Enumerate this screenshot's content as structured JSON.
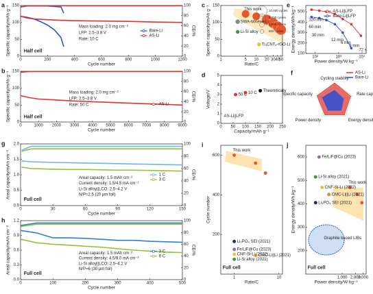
{
  "chart_data": [
    {
      "panel": "a",
      "type": "line",
      "xlabel": "Cycle number",
      "ylabel": "Specific capacity/mAh g⁻¹",
      "y2label": "CE/%",
      "xlim": [
        0,
        1200
      ],
      "xticks": [
        0,
        200,
        400,
        600,
        800,
        1000,
        1200
      ],
      "ylim": [
        0,
        150
      ],
      "yticks": [
        0,
        50,
        100,
        150
      ],
      "y2lim": [
        0,
        100
      ],
      "y2ticks": [
        0,
        20,
        40,
        60,
        80,
        100
      ],
      "series": [
        {
          "name": "Bare-Li",
          "color": "#2a4fd8",
          "x": [
            1,
            50,
            100,
            150,
            200,
            250,
            300,
            320,
            400,
            600,
            800,
            1000,
            1200
          ],
          "values": [
            118,
            115,
            110,
            102,
            92,
            78,
            55,
            28,
            null,
            null,
            null,
            null,
            null
          ]
        },
        {
          "name": "AS-Li",
          "color": "#e0312b",
          "x": [
            1,
            50,
            100,
            150,
            200,
            250,
            300,
            320,
            400,
            600,
            800,
            1000,
            1200
          ],
          "values": [
            118,
            113,
            110,
            109,
            108,
            107,
            106,
            106,
            105,
            104,
            103,
            101,
            100
          ]
        },
        {
          "color": "#2a4fd8",
          "axis": "y2",
          "x": [
            1,
            50,
            100,
            150,
            200,
            250,
            300,
            320,
            400,
            600,
            800,
            1000,
            1200
          ],
          "values": [
            97,
            99,
            99,
            99,
            99,
            98,
            97,
            85,
            null,
            null,
            null,
            null,
            null
          ]
        },
        {
          "color": "#e0312b",
          "axis": "y2",
          "x": [
            1,
            50,
            100,
            150,
            200,
            250,
            300,
            320,
            400,
            600,
            800,
            1000,
            1200
          ],
          "values": [
            97,
            99.5,
            99.5,
            99.5,
            99.5,
            99.5,
            99.5,
            99.5,
            99.5,
            99.5,
            99.5,
            99.5,
            99.5
          ]
        }
      ],
      "annotations": [
        "Mass loading: 2.0 mg cm⁻²",
        "LFP: 2.5–3.8 V",
        "Rate: 10 C",
        "Half cell"
      ]
    },
    {
      "panel": "b",
      "type": "line",
      "xlabel": "Cycle number",
      "ylabel": "Specific capacity/mAh g⁻¹",
      "y2label": "CE/%",
      "xlim": [
        0,
        9000
      ],
      "xticks": [
        0,
        1000,
        2000,
        3000,
        4000,
        5000,
        6000,
        7000,
        8000,
        9000
      ],
      "ylim": [
        0,
        150
      ],
      "yticks": [
        0,
        50,
        100,
        150
      ],
      "y2lim": [
        0,
        100
      ],
      "y2ticks": [
        0,
        20,
        40,
        60,
        80,
        100
      ],
      "series": [
        {
          "name": "AS-Li",
          "color": "#e0312b",
          "x": [
            1,
            500,
            1000,
            2000,
            3000,
            4000,
            5000,
            6000,
            7000,
            8000,
            9000
          ],
          "values": [
            78,
            72,
            68,
            65,
            62,
            60,
            58,
            56,
            54,
            52,
            50
          ]
        },
        {
          "color": "#e0312b",
          "axis": "y2",
          "x": [
            1,
            500,
            1000,
            2000,
            3000,
            4000,
            5000,
            6000,
            7000,
            8000,
            9000
          ],
          "values": [
            98,
            99.6,
            99.6,
            99.6,
            99.6,
            99.6,
            99.6,
            99.6,
            99.6,
            99.6,
            99.6
          ]
        }
      ],
      "annotations": [
        "Mass loading: 2.0 mg cm⁻²",
        "LFP: 2.5–3.8 V",
        "Rate: 50 C",
        "Half cell"
      ]
    },
    {
      "panel": "c",
      "type": "scatter",
      "xlabel": "Rate/C",
      "ylabel": "Specific capacity/mAh g⁻¹",
      "xscale": "log",
      "xlim": [
        1,
        55
      ],
      "xticks": [
        1,
        5,
        10,
        20,
        30,
        40,
        50
      ],
      "ylim": [
        0,
        150
      ],
      "yticks": [
        0,
        50,
        100,
        150
      ],
      "series": [
        {
          "name": "This work",
          "color": "#e8572a",
          "x": [
            5,
            10,
            20,
            30,
            40,
            50
          ],
          "values": [
            125,
            118,
            108,
            98,
            88,
            78
          ],
          "sizes": [
            5000,
            5000,
            10000,
            10000,
            10000,
            10000
          ]
        },
        {
          "name": "SWA-MXene-Li",
          "color": "#888888",
          "x": [
            3
          ],
          "values": [
            102
          ],
          "sizes": [
            1000
          ]
        },
        {
          "name": "Li-Si alloy",
          "color": "#3a9a3a",
          "x": [
            3
          ],
          "values": [
            72
          ],
          "sizes": [
            500
          ]
        },
        {
          "name": "Ti₃CNTₓ-rGO-Li",
          "color": "#e8c32a",
          "x": [
            12
          ],
          "values": [
            35
          ],
          "sizes": [
            500
          ]
        }
      ],
      "size_legend": [
        {
          "value": 10000,
          "label": "10,000 cycles"
        },
        {
          "value": 5000,
          "label": "5,000 cycles"
        },
        {
          "value": 1000,
          "label": "1,000 cycles"
        },
        {
          "value": 500,
          "label": "500 cycles"
        }
      ]
    },
    {
      "panel": "d",
      "type": "scatter",
      "xlabel": "Capacity/mAh g⁻¹",
      "ylabel": "Voltage/V",
      "xlim": [
        0,
        250
      ],
      "xticks": [
        0,
        50,
        100,
        150,
        200,
        250
      ],
      "ylim": [
        0,
        5
      ],
      "yticks": [
        0,
        1,
        2,
        3,
        4,
        5
      ],
      "series": [
        {
          "name": "50 C",
          "color": "#e0312b",
          "x": [
            60
          ],
          "values": [
            3.0
          ]
        },
        {
          "name": "10 C",
          "color": "#e0312b",
          "x": [
            100
          ],
          "values": [
            3.2
          ]
        },
        {
          "name": "Theoretically",
          "color": "#000000",
          "x": [
            160
          ],
          "values": [
            3.4
          ]
        }
      ],
      "annotations": [
        "AS-Li||LFP"
      ]
    },
    {
      "panel": "e",
      "type": "line",
      "markers": true,
      "xlabel": "Power density/W kg⁻¹",
      "ylabel": "Energy density/Wh kg⁻¹",
      "xscale": "log",
      "xlim": [
        40,
        15000
      ],
      "xticks": [
        {
          "value": 100,
          "label": "10²"
        },
        {
          "value": 1000,
          "label": "10³"
        },
        {
          "value": 10000,
          "label": "10⁴"
        }
      ],
      "ylim": [
        100,
        560
      ],
      "yticks": [
        100,
        200,
        300,
        400,
        500
      ],
      "series": [
        {
          "name": "AS-Li||LFP",
          "color": "#e0312b",
          "x": [
            70,
            150,
            300,
            700,
            1500,
            3500,
            9000
          ],
          "values": [
            520,
            510,
            500,
            480,
            430,
            380,
            270
          ]
        },
        {
          "name": "Bare-Li||LFP",
          "color": "#2a4fd8",
          "x": [
            70,
            150,
            300,
            700,
            1500,
            3500
          ],
          "values": [
            450,
            440,
            420,
            380,
            300,
            150
          ]
        }
      ],
      "annotations": [
        "120 min",
        "60 min",
        "30 min",
        "12 min",
        "6 min",
        "3 min",
        "72 s"
      ]
    },
    {
      "panel": "f",
      "type": "radar",
      "rlim": [
        0,
        5
      ],
      "categories": [
        "Cycling stability",
        "Rate capability",
        "Energy density",
        "Power density",
        "Specific capacity"
      ],
      "series": [
        {
          "name": "AS-Li",
          "color": "#e0312b",
          "values": [
            5,
            4.6,
            4.5,
            4.5,
            5
          ]
        },
        {
          "name": "Bare-Li",
          "color": "#2a4fd8",
          "values": [
            3,
            2.5,
            3,
            3,
            3.5
          ]
        }
      ]
    },
    {
      "panel": "g",
      "type": "line",
      "xlabel": "Cycle number",
      "ylabel": "Areal capacity/mAh cm⁻²",
      "y2label": "CE/%",
      "xlim": [
        0,
        150
      ],
      "xticks": [
        0,
        30,
        60,
        90,
        120,
        150
      ],
      "ylim": [
        0,
        2
      ],
      "yticks": [
        {
          "value": 0,
          "label": "0.0"
        },
        {
          "value": 0.5,
          "label": "0.5"
        },
        {
          "value": 1,
          "label": "1.0"
        },
        {
          "value": 1.5,
          "label": "1.5"
        },
        {
          "value": 2,
          "label": "2.0"
        }
      ],
      "y2lim": [
        0,
        100
      ],
      "y2ticks": [
        0,
        20,
        40,
        60,
        80,
        100
      ],
      "series": [
        {
          "name": "1 C",
          "color": "#6fb7e6",
          "x": [
            1,
            10,
            20,
            30,
            45,
            60,
            75,
            90,
            105,
            120,
            135,
            150
          ],
          "values": [
            1.45,
            1.42,
            1.41,
            1.4,
            1.39,
            1.38,
            1.37,
            1.36,
            1.35,
            1.34,
            1.33,
            1.32
          ]
        },
        {
          "name": "3 C",
          "color": "#8cc63f",
          "x": [
            1,
            10,
            20,
            30,
            45,
            60,
            75,
            90,
            105,
            120,
            135,
            150
          ],
          "values": [
            1.25,
            1.2,
            1.19,
            1.18,
            1.17,
            1.17,
            1.16,
            1.15,
            1.15,
            1.14,
            1.13,
            1.12
          ]
        },
        {
          "color": "#6fb7e6",
          "axis": "y2",
          "x": [
            1,
            10,
            20,
            30,
            45,
            60,
            75,
            90,
            105,
            120,
            135,
            150
          ],
          "values": [
            90,
            96,
            96,
            96,
            96,
            96,
            96,
            96,
            96,
            96,
            96,
            96
          ]
        },
        {
          "color": "#8cc63f",
          "axis": "y2",
          "x": [
            1,
            10,
            20,
            30,
            45,
            60,
            75,
            90,
            105,
            120,
            135,
            150
          ],
          "values": [
            88,
            92,
            92,
            92,
            92,
            92,
            92,
            92,
            92,
            92,
            92,
            92
          ]
        }
      ],
      "annotations": [
        "Areal capacity: 1.5 mAh cm⁻²",
        "Current density: 1.5/4.5 mA cm⁻²",
        "Li-Si alloy||LCO: 2.5–4.2 V",
        "N/P=2.5 (20 μm foil)",
        "Full cell"
      ]
    },
    {
      "panel": "h",
      "type": "line",
      "xlabel": "Cycle number",
      "ylabel": "Areal capacity/mAh cm⁻²",
      "y2label": "CE/%",
      "xlim": [
        0,
        500
      ],
      "xticks": [
        0,
        100,
        200,
        300,
        400,
        500
      ],
      "ylim": [
        0,
        1.2
      ],
      "yticks": [
        {
          "value": 0,
          "label": "0.0"
        },
        0.3,
        0.6,
        0.9,
        1.2
      ],
      "y2lim": [
        0,
        100
      ],
      "y2ticks": [
        0,
        20,
        40,
        60,
        80,
        100
      ],
      "series": [
        {
          "name": "3 C",
          "color": "#2e7fd1",
          "x": [
            1,
            50,
            100,
            150,
            200,
            250,
            300,
            350,
            400,
            450,
            500
          ],
          "values": [
            1.0,
            0.95,
            0.85,
            0.85,
            0.84,
            0.82,
            0.8,
            0.8,
            0.78,
            0.77,
            0.76
          ]
        },
        {
          "name": "6 C",
          "color": "#8cc63f",
          "x": [
            1,
            50,
            100,
            150,
            200,
            250,
            300,
            350,
            400,
            450,
            500
          ],
          "values": [
            0.82,
            0.75,
            0.72,
            0.7,
            0.68,
            0.66,
            0.63,
            0.6,
            0.58,
            0.56,
            0.55
          ]
        },
        {
          "color": "#2e7fd1",
          "axis": "y2",
          "x": [
            1,
            50,
            100,
            150,
            200,
            250,
            300,
            350,
            400,
            450,
            500
          ],
          "values": [
            92,
            96,
            96,
            96,
            96,
            96,
            96,
            96,
            96,
            96,
            96
          ]
        },
        {
          "color": "#8cc63f",
          "axis": "y2",
          "x": [
            1,
            50,
            100,
            150,
            200,
            250,
            300,
            350,
            400,
            450,
            500
          ],
          "values": [
            90,
            94,
            94,
            94,
            94,
            94,
            94,
            94,
            94,
            94,
            94
          ]
        }
      ],
      "annotations": [
        "Areal capacity: 1.5 mAh cm⁻²",
        "Current density: 4.5/9.0 mA cm⁻²",
        "Li-Si alloy||LCO: 2.5–4.2 V",
        "N/P=6 (30 μm foil)",
        "Full cell"
      ]
    },
    {
      "panel": "i",
      "type": "scatter",
      "xlabel": "Rate/C",
      "ylabel": "Cycle number",
      "xscale": "log",
      "xlim": [
        0.5,
        12
      ],
      "xticks": [
        1,
        10
      ],
      "ylim": [
        0,
        650
      ],
      "yticks": [
        200,
        400,
        600
      ],
      "series": [
        {
          "name": "This work",
          "color": "#e8572a",
          "x": [
            1,
            3,
            5
          ],
          "values": [
            600,
            560,
            510
          ]
        },
        {
          "name": "Li₃PO₄ SEI (2021)",
          "color": "#1f2a60",
          "x": [
            1
          ],
          "values": [
            165
          ]
        },
        {
          "name": "Fe/LiF@Cu (2023)",
          "color": "#9467bd",
          "x": [
            1
          ],
          "values": [
            125
          ]
        },
        {
          "name": "CNF-Si-Li (2022)",
          "color": "#e8c32a",
          "x": [
            1
          ],
          "values": [
            100
          ]
        },
        {
          "name": "Li-Si alloy (2021)",
          "color": "#3a9a3a",
          "x": [
            1
          ],
          "values": [
            75
          ]
        },
        {
          "name": "CMC-Li||Li (2021)",
          "color": "#e08a2a",
          "x": [
            3
          ],
          "values": [
            95
          ]
        }
      ],
      "annotations": [
        "Full cell"
      ]
    },
    {
      "panel": "j",
      "type": "scatter",
      "xlabel": "Power density/W kg⁻¹",
      "ylabel": "Energy density/Wh kg⁻¹",
      "xscale": "log",
      "xlim": [
        150,
        3500
      ],
      "xticks": [
        {
          "value": 1000,
          "label": "1,000"
        },
        {
          "value": 2000,
          "label": "2,000"
        },
        {
          "value": 3000,
          "label": "3,000"
        }
      ],
      "ylim": [
        100,
        650
      ],
      "yticks": [
        200,
        300,
        400,
        500,
        600
      ],
      "series": [
        {
          "name": "This work",
          "color": "#e8572a",
          "x": [
            1500,
            2200,
            2800
          ],
          "values": [
            470,
            440,
            405
          ]
        },
        {
          "name": "Fe/LiF@Cu (2023)",
          "color": "#9467bd",
          "x": [
            300
          ],
          "values": [
            600
          ]
        },
        {
          "name": "Li-Si alloy (2021)",
          "color": "#3a9a3a",
          "x": [
            250
          ],
          "values": [
            515
          ]
        },
        {
          "name": "CNF-Si-Li (2022)",
          "color": "#e8c32a",
          "x": [
            350
          ],
          "values": [
            470
          ]
        },
        {
          "name": "CMC-Li||Li (2021)",
          "color": "#e08a2a",
          "x": [
            500
          ],
          "values": [
            440
          ]
        },
        {
          "name": "Li₃PO₄ SEI (2021)",
          "color": "#1f2a60",
          "x": [
            250
          ],
          "values": [
            405
          ]
        }
      ],
      "annotations": [
        "Graphite based LIBs",
        "Full cell"
      ]
    }
  ]
}
